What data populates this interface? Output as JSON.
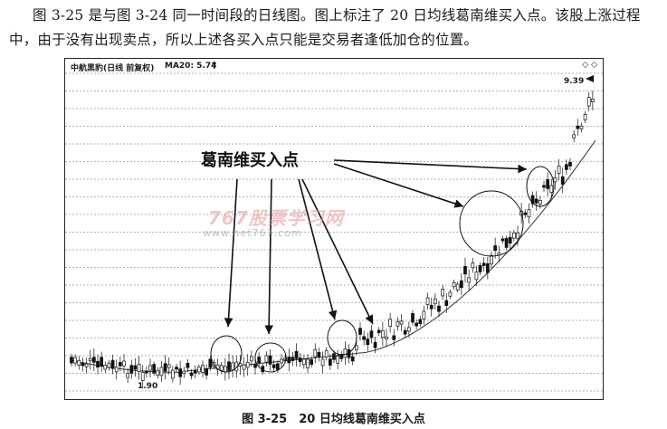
{
  "text": {
    "paragraph": "图 3-25 是与图 3-24 同一时间段的日线图。图上标注了 20 日均线葛南维买入点。该股上涨过程中，由于没有出现卖点，所以上述各买入点只能是交易者逢低加仓的位置。",
    "caption": "图 3-25　20 日均线葛南维买入点"
  },
  "chart": {
    "header_left": "中航黑豹(日线 前复权)",
    "header_ma": "MA20: 5.74",
    "ma_arrow": "↑",
    "header_right": "◇ ◇",
    "price_high": "9.39",
    "price_low": "1.90",
    "annotation": "葛南维买入点",
    "watermark_main": "767股票学习网",
    "watermark_url": "www.net767.com",
    "colors": {
      "candle": "#111111",
      "ma": "#333333",
      "grid": "#999999"
    },
    "marked_points": 6
  }
}
